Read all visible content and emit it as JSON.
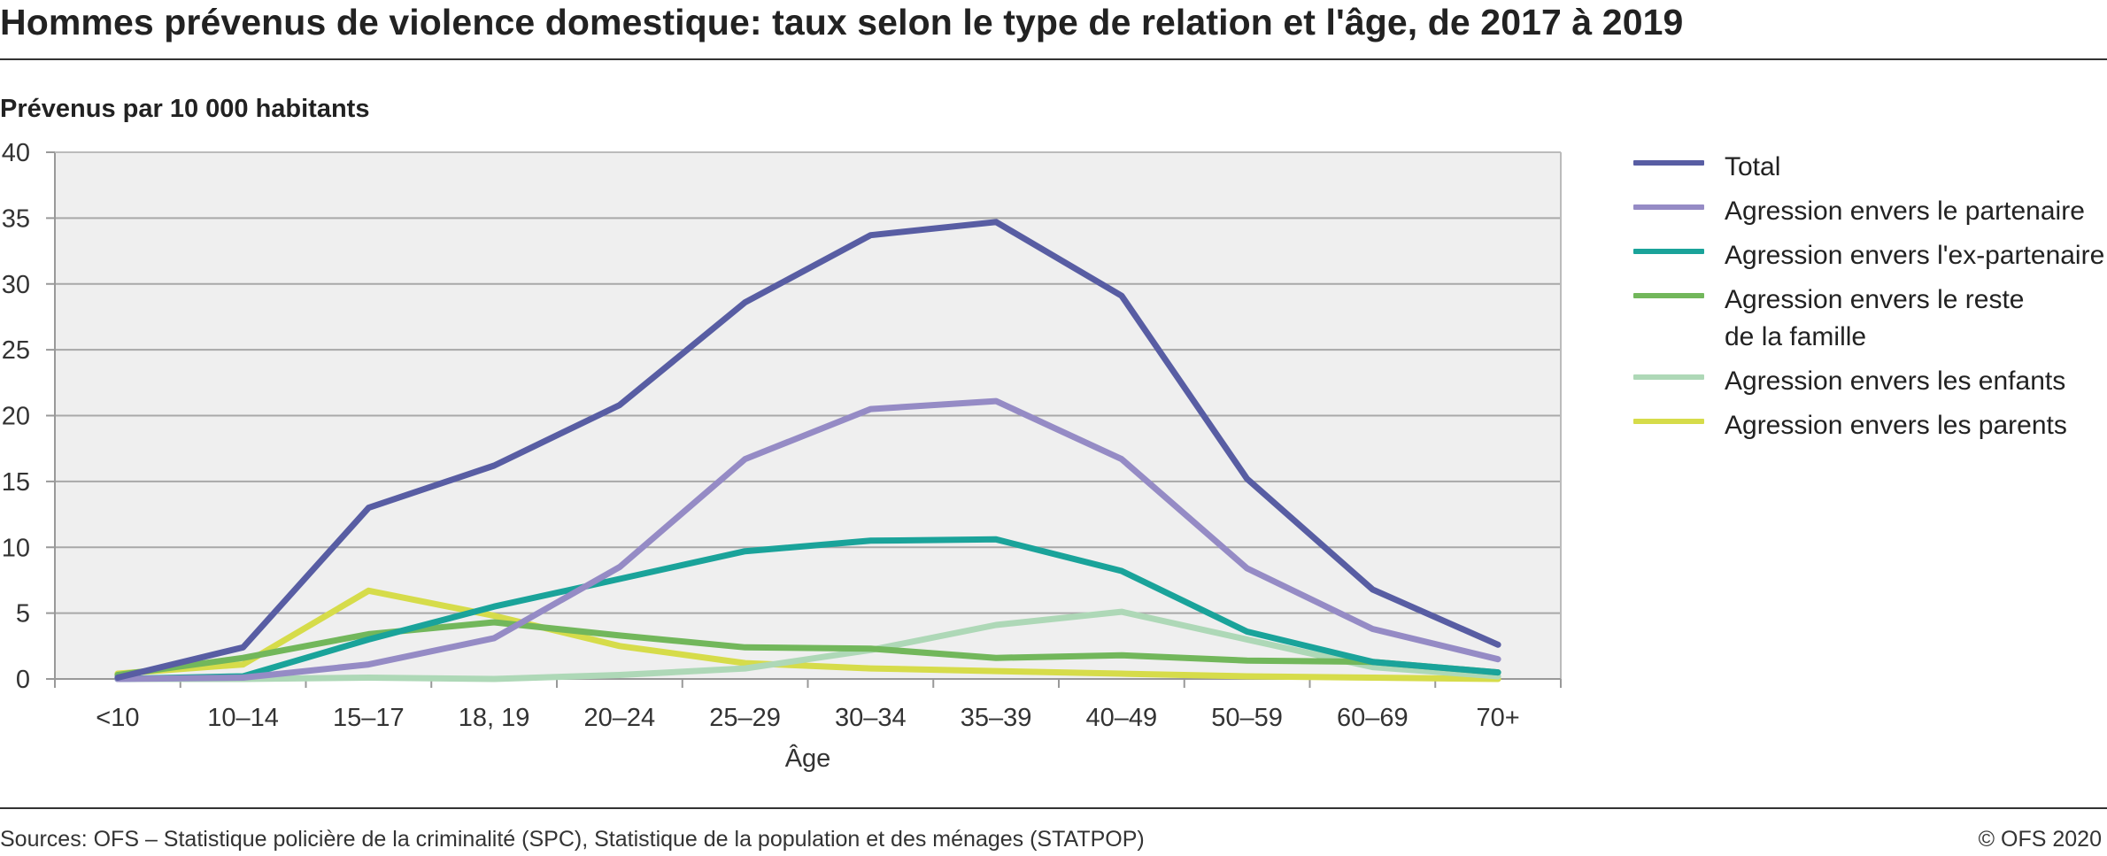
{
  "title": "Hommes prévenus de violence domestique: taux selon le type de relation et l'âge, de 2017 à 2019",
  "source": "Sources: OFS – Statistique policière de la criminalité (SPC), Statistique de la population et des ménages (STATPOP)",
  "copyright": "© OFS 2020",
  "chart_data": {
    "type": "line",
    "title": "Hommes prévenus de violence domestique: taux selon le type de relation et l'âge, de 2017 à 2019",
    "ylabel": "Prévenus par 10 000 habitants",
    "xlabel": "Âge",
    "ylim": [
      0,
      40
    ],
    "yticks": [
      "0",
      "5",
      "10",
      "15",
      "20",
      "25",
      "30",
      "35",
      "40"
    ],
    "grid": true,
    "legend_position": "right",
    "categories": [
      "<10",
      "10–14",
      "15–17",
      "18, 19",
      "20–24",
      "25–29",
      "30–34",
      "35–39",
      "40–49",
      "50–59",
      "60–69",
      "70+"
    ],
    "series": [
      {
        "name": "Total",
        "color": "#585da3",
        "values": [
          0.1,
          2.4,
          13.0,
          16.2,
          20.8,
          28.6,
          33.7,
          34.7,
          29.1,
          15.2,
          6.8,
          2.6
        ]
      },
      {
        "name": "Agression envers le partenaire",
        "color": "#958bc5",
        "values": [
          0.0,
          0.1,
          1.1,
          3.1,
          8.5,
          16.7,
          20.5,
          21.1,
          16.7,
          8.4,
          3.8,
          1.5
        ]
      },
      {
        "name": "Agression envers l'ex-partenaire",
        "color": "#1aa39a",
        "values": [
          0.0,
          0.2,
          3.0,
          5.5,
          7.6,
          9.7,
          10.5,
          10.6,
          8.2,
          3.6,
          1.3,
          0.5
        ]
      },
      {
        "name": "Agression envers le reste\nde la famille",
        "color": "#72b75b",
        "values": [
          0.3,
          1.6,
          3.4,
          4.3,
          3.3,
          2.4,
          2.3,
          1.6,
          1.8,
          1.4,
          1.3,
          0.5
        ]
      },
      {
        "name": "Agression envers les enfants",
        "color": "#aed8b7",
        "values": [
          0.0,
          0.0,
          0.1,
          0.0,
          0.3,
          0.8,
          2.2,
          4.1,
          5.1,
          3.0,
          0.9,
          0.2
        ]
      },
      {
        "name": "Agression envers les parents",
        "color": "#d6dc4a",
        "values": [
          0.4,
          1.1,
          6.7,
          4.8,
          2.5,
          1.2,
          0.8,
          0.6,
          0.4,
          0.2,
          0.1,
          0.0
        ]
      }
    ]
  }
}
